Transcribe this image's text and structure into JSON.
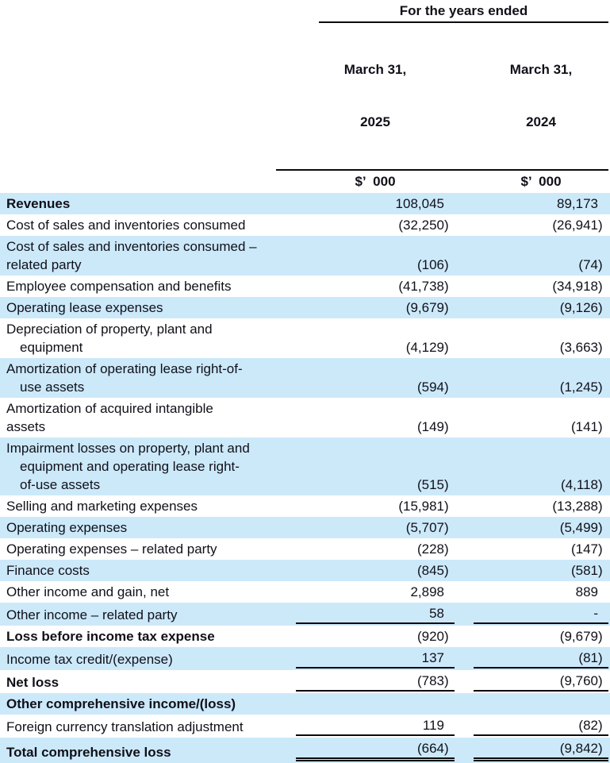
{
  "header": {
    "title": "For the years ended",
    "columns": [
      {
        "period": "March 31,",
        "year": "2025",
        "unit": "$’  000"
      },
      {
        "period": "March 31,",
        "year": "2024",
        "unit": "$’  000"
      }
    ]
  },
  "table": {
    "rows": [
      {
        "lines": [
          "Revenues"
        ],
        "indent_wrapped": false,
        "bold": true,
        "bg": "blue",
        "v2025": "108,045",
        "v2024": "89,173",
        "rule": "none"
      },
      {
        "lines": [
          "Cost of sales and inventories consumed"
        ],
        "indent_wrapped": false,
        "bold": false,
        "bg": "white",
        "v2025": "(32,250)",
        "v2024": "(26,941)",
        "rule": "none"
      },
      {
        "lines": [
          "Cost of sales and inventories consumed –",
          "related party"
        ],
        "indent_wrapped": false,
        "bold": false,
        "bg": "blue",
        "v2025": "(106)",
        "v2024": "(74)",
        "rule": "none"
      },
      {
        "lines": [
          "Employee compensation and benefits"
        ],
        "indent_wrapped": false,
        "bold": false,
        "bg": "white",
        "v2025": "(41,738)",
        "v2024": "(34,918)",
        "rule": "none"
      },
      {
        "lines": [
          "Operating lease expenses"
        ],
        "indent_wrapped": false,
        "bold": false,
        "bg": "blue",
        "v2025": "(9,679)",
        "v2024": "(9,126)",
        "rule": "none"
      },
      {
        "lines": [
          "Depreciation of property, plant and",
          "equipment"
        ],
        "indent_wrapped": true,
        "bold": false,
        "bg": "white",
        "v2025": "(4,129)",
        "v2024": "(3,663)",
        "rule": "none"
      },
      {
        "lines": [
          "Amortization of operating lease right-of-",
          "use assets"
        ],
        "indent_wrapped": true,
        "bold": false,
        "bg": "blue",
        "v2025": "(594)",
        "v2024": "(1,245)",
        "rule": "none"
      },
      {
        "lines": [
          "Amortization of acquired intangible",
          "assets"
        ],
        "indent_wrapped": false,
        "bold": false,
        "bg": "white",
        "v2025": "(149)",
        "v2024": "(141)",
        "rule": "none"
      },
      {
        "lines": [
          "Impairment losses on property, plant and",
          "equipment and operating lease right-",
          "of-use assets"
        ],
        "indent_wrapped": true,
        "bold": false,
        "bg": "blue",
        "v2025": "(515)",
        "v2024": "(4,118)",
        "rule": "none"
      },
      {
        "lines": [
          "Selling and marketing expenses"
        ],
        "indent_wrapped": false,
        "bold": false,
        "bg": "white",
        "v2025": "(15,981)",
        "v2024": "(13,288)",
        "rule": "none"
      },
      {
        "lines": [
          "Operating expenses"
        ],
        "indent_wrapped": false,
        "bold": false,
        "bg": "blue",
        "v2025": "(5,707)",
        "v2024": "(5,499)",
        "rule": "none"
      },
      {
        "lines": [
          "Operating expenses – related party"
        ],
        "indent_wrapped": false,
        "bold": false,
        "bg": "white",
        "v2025": "(228)",
        "v2024": "(147)",
        "rule": "none"
      },
      {
        "lines": [
          "Finance costs"
        ],
        "indent_wrapped": false,
        "bold": false,
        "bg": "blue",
        "v2025": "(845)",
        "v2024": "(581)",
        "rule": "none"
      },
      {
        "lines": [
          "Other income and gain, net"
        ],
        "indent_wrapped": false,
        "bold": false,
        "bg": "white",
        "v2025": "2,898",
        "v2024": "889",
        "rule": "none"
      },
      {
        "lines": [
          "Other income – related party"
        ],
        "indent_wrapped": false,
        "bold": false,
        "bg": "blue",
        "v2025": "58",
        "v2024": "-",
        "rule": "single"
      },
      {
        "lines": [
          "Loss before income tax expense"
        ],
        "indent_wrapped": false,
        "bold": true,
        "bg": "white",
        "v2025": "(920)",
        "v2024": "(9,679)",
        "rule": "none"
      },
      {
        "lines": [
          "Income tax credit/(expense)"
        ],
        "indent_wrapped": false,
        "bold": false,
        "bg": "blue",
        "v2025": "137",
        "v2024": "(81)",
        "rule": "single"
      },
      {
        "lines": [
          "Net loss"
        ],
        "indent_wrapped": false,
        "bold": true,
        "bg": "white",
        "v2025": "(783)",
        "v2024": "(9,760)",
        "rule": "single"
      },
      {
        "lines": [
          "Other comprehensive income/(loss)"
        ],
        "indent_wrapped": false,
        "bold": true,
        "bg": "blue",
        "v2025": "",
        "v2024": "",
        "rule": "none"
      },
      {
        "lines": [
          "Foreign currency translation adjustment"
        ],
        "indent_wrapped": false,
        "bold": false,
        "bg": "white",
        "v2025": "119",
        "v2024": "(82)",
        "rule": "single"
      },
      {
        "lines": [
          "Total comprehensive loss"
        ],
        "indent_wrapped": false,
        "bold": true,
        "bg": "blue",
        "v2025": "(664)",
        "v2024": "(9,842)",
        "rule": "double"
      }
    ]
  }
}
